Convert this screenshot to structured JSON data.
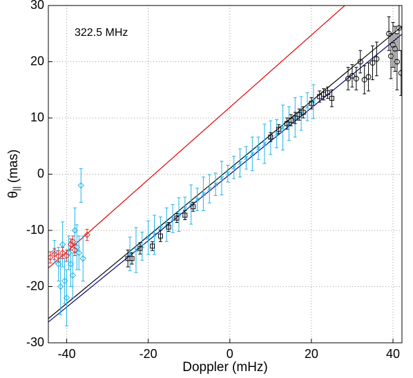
{
  "chart_data": {
    "type": "scatter",
    "annotation": "322.5 MHz",
    "xlabel": "Doppler (mHz)",
    "ylabel": {
      "symbol": "θ",
      "subscript": "||",
      "unit": "(mas)"
    },
    "xlim": [
      -44.5,
      42.2
    ],
    "ylim": [
      -30,
      30
    ],
    "xticks": [
      -40,
      -20,
      0,
      20,
      40
    ],
    "yticks": [
      -30,
      -20,
      -10,
      0,
      10,
      20,
      30
    ],
    "grid": true,
    "series": [
      {
        "kind": "line",
        "color": "#e00000",
        "x": [
          -44.5,
          42.2
        ],
        "values": [
          -16.7,
          39.0
        ]
      },
      {
        "kind": "line",
        "color": "#000000",
        "x": [
          -44.5,
          42.2
        ],
        "values": [
          -25.7,
          26.3
        ]
      },
      {
        "kind": "line",
        "color": "#000080",
        "x": [
          -44.5,
          42.2
        ],
        "values": [
          -26.3,
          24.9
        ]
      },
      {
        "kind": "cross",
        "color": "#1eb4e6",
        "x": [
          -24.5,
          -23,
          -21.5,
          -20,
          -18.5,
          -17,
          -15.5,
          -14,
          -12.5,
          -11,
          -9.5,
          -8,
          -6.5,
          -5,
          -3.5,
          -2,
          -0.5,
          1,
          2.5,
          4,
          5.5,
          7,
          8.5,
          10,
          11.5,
          13,
          14.5,
          16,
          17.5,
          19,
          20.5
        ],
        "values": [
          -14.2,
          -13.5,
          -12.8,
          -11.3,
          -10.8,
          -9.6,
          -9.0,
          -7.9,
          -7.2,
          -6.1,
          -5.4,
          -4.5,
          -3.5,
          -2.6,
          -1.8,
          -0.7,
          0.1,
          1.2,
          2.0,
          2.9,
          3.6,
          4.6,
          5.4,
          6.5,
          7.2,
          8.3,
          9.0,
          10.1,
          10.8,
          12.0,
          12.9
        ],
        "errors": [
          3,
          4,
          2.5,
          3,
          3.5,
          2,
          3,
          2.5,
          3,
          2,
          3.5,
          2,
          3,
          2.5,
          2,
          3,
          1.5,
          2,
          2.5,
          2,
          3,
          2,
          3.5,
          3,
          2.5,
          4,
          3,
          3.5,
          3,
          2.5,
          3
        ]
      },
      {
        "kind": "square",
        "color": "#000000",
        "x": [
          -25,
          -24,
          -22,
          -19,
          -17,
          -15,
          -13,
          -11,
          -9,
          10,
          12,
          14,
          15,
          16,
          17,
          18,
          20,
          22,
          23,
          24,
          25
        ],
        "values": [
          -15,
          -15,
          -13.2,
          -12.8,
          -11,
          -9.4,
          -7.8,
          -7.3,
          -5.8,
          6.6,
          8,
          9,
          9.6,
          10,
          10.6,
          11,
          12.6,
          13.8,
          14.2,
          14.5,
          13.5
        ],
        "errors": [
          1.5,
          1,
          1,
          0.8,
          1,
          0.8,
          0.8,
          0.8,
          0.8,
          0.8,
          0.8,
          1,
          1,
          1,
          1,
          1,
          1,
          1,
          1,
          1,
          1.5
        ]
      },
      {
        "kind": "circle",
        "color": "#000000",
        "x": [
          29,
          30,
          31,
          32,
          33,
          34,
          35,
          36,
          39,
          39.5,
          40,
          40.5,
          41,
          41.5,
          42
        ],
        "values": [
          17,
          17.5,
          17,
          20,
          16.8,
          17.3,
          19.8,
          20.5,
          25,
          21,
          23,
          22.3,
          20,
          26,
          18
        ],
        "errors": [
          2,
          2,
          2,
          2,
          2.5,
          2.5,
          3,
          3,
          3,
          4,
          4,
          4,
          5,
          4,
          4
        ]
      },
      {
        "kind": "diamond",
        "color": "#1eb4e6",
        "x": [
          -43,
          -42,
          -41.5,
          -41,
          -40.5,
          -40,
          -39.5,
          -39,
          -38.5,
          -38,
          -37.5,
          -37,
          -36.5,
          -36
        ],
        "values": [
          -13.8,
          -16,
          -20,
          -12.5,
          -19,
          -22,
          -14,
          -16,
          -18,
          -10,
          -13,
          -14,
          -2,
          -15
        ],
        "errors": [
          2,
          3,
          5,
          4,
          4,
          5,
          3,
          4,
          4,
          4,
          4,
          3,
          3,
          4
        ]
      },
      {
        "kind": "diamond",
        "color": "#e03030",
        "x": [
          -44,
          -43,
          -42,
          -41,
          -40,
          -39,
          -38.5,
          -38,
          -35
        ],
        "values": [
          -14.8,
          -14.2,
          -14.6,
          -14,
          -14.5,
          -12.5,
          -12,
          -13.5,
          -10.8
        ],
        "errors": [
          1,
          1,
          1,
          1,
          1,
          1,
          1,
          1,
          1
        ]
      }
    ]
  }
}
